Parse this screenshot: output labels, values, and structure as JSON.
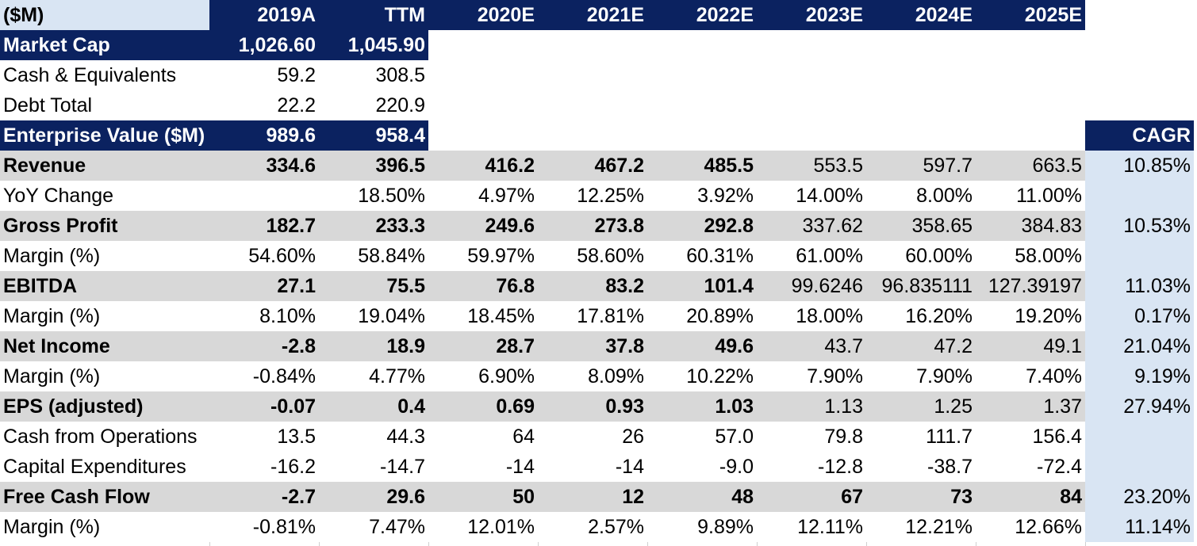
{
  "header": {
    "units_label": "($M)",
    "columns": [
      "2019A",
      "TTM",
      "2020E",
      "2021E",
      "2022E",
      "2023E",
      "2024E",
      "2025E"
    ],
    "cagr_label": "CAGR"
  },
  "valuation": [
    {
      "label": "Market Cap",
      "values": [
        "1,026.60",
        "1,045.90"
      ]
    },
    {
      "label": "Cash & Equivalents",
      "values": [
        "59.2",
        "308.5"
      ]
    },
    {
      "label": "Debt Total",
      "values": [
        "22.2",
        "220.9"
      ]
    },
    {
      "label": "Enterprise Value ($M)",
      "values": [
        "989.6",
        "958.4"
      ]
    }
  ],
  "metrics": [
    {
      "label": "Revenue",
      "values": [
        "334.6",
        "396.5",
        "416.2",
        "467.2",
        "485.5",
        "553.5",
        "597.7",
        "663.5"
      ],
      "cagr": "10.85%"
    },
    {
      "label": "YoY Change",
      "values": [
        "",
        "18.50%",
        "4.97%",
        "12.25%",
        "3.92%",
        "14.00%",
        "8.00%",
        "11.00%"
      ],
      "cagr": ""
    },
    {
      "label": "Gross Profit",
      "values": [
        "182.7",
        "233.3",
        "249.6",
        "273.8",
        "292.8",
        "337.62",
        "358.65",
        "384.83"
      ],
      "cagr": "10.53%"
    },
    {
      "label": "Margin (%)",
      "values": [
        "54.60%",
        "58.84%",
        "59.97%",
        "58.60%",
        "60.31%",
        "61.00%",
        "60.00%",
        "58.00%"
      ],
      "cagr": ""
    },
    {
      "label": "EBITDA",
      "values": [
        "27.1",
        "75.5",
        "76.8",
        "83.2",
        "101.4",
        "99.6246",
        "96.835111",
        "127.39197"
      ],
      "cagr": "11.03%"
    },
    {
      "label": "Margin (%)",
      "values": [
        "8.10%",
        "19.04%",
        "18.45%",
        "17.81%",
        "20.89%",
        "18.00%",
        "16.20%",
        "19.20%"
      ],
      "cagr": "0.17%"
    },
    {
      "label": "Net Income",
      "values": [
        "-2.8",
        "18.9",
        "28.7",
        "37.8",
        "49.6",
        "43.7",
        "47.2",
        "49.1"
      ],
      "cagr": "21.04%"
    },
    {
      "label": "Margin (%)",
      "values": [
        "-0.84%",
        "4.77%",
        "6.90%",
        "8.09%",
        "10.22%",
        "7.90%",
        "7.90%",
        "7.40%"
      ],
      "cagr": "9.19%"
    },
    {
      "label": "EPS (adjusted)",
      "values": [
        "-0.07",
        "0.4",
        "0.69",
        "0.93",
        "1.03",
        "1.13",
        "1.25",
        "1.37"
      ],
      "cagr": "27.94%"
    },
    {
      "label": "Cash from Operations",
      "values": [
        "13.5",
        "44.3",
        "64",
        "26",
        "57.0",
        "79.8",
        "111.7",
        "156.4"
      ],
      "cagr": ""
    },
    {
      "label": "Capital Expenditures",
      "values": [
        "-16.2",
        "-14.7",
        "-14",
        "-14",
        "-9.0",
        "-12.8",
        "-38.7",
        "-72.4"
      ],
      "cagr": ""
    },
    {
      "label": "Free Cash Flow",
      "values": [
        "-2.7",
        "29.6",
        "50",
        "12",
        "48",
        "67",
        "73",
        "84"
      ],
      "cagr": "23.20%"
    },
    {
      "label": "Margin (%)",
      "values": [
        "-0.81%",
        "7.47%",
        "12.01%",
        "2.57%",
        "9.89%",
        "12.11%",
        "12.21%",
        "12.66%"
      ],
      "cagr": "11.14%"
    }
  ],
  "colors": {
    "navy": "#0b2260",
    "grey": "#d8d8d8",
    "light_blue": "#d9e5f3"
  }
}
